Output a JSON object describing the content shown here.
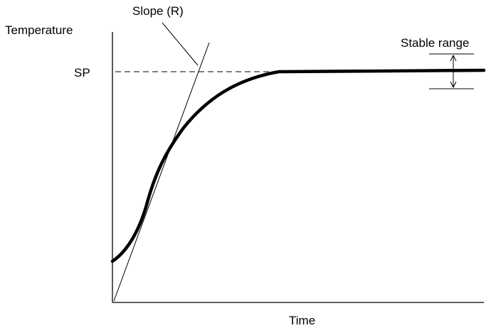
{
  "labels": {
    "y_axis": "Temperature",
    "x_axis": "Time",
    "setpoint": "SP",
    "slope": "Slope (R)",
    "stable_range": "Stable range"
  },
  "colors": {
    "ink": "#000000",
    "background": "#ffffff"
  }
}
